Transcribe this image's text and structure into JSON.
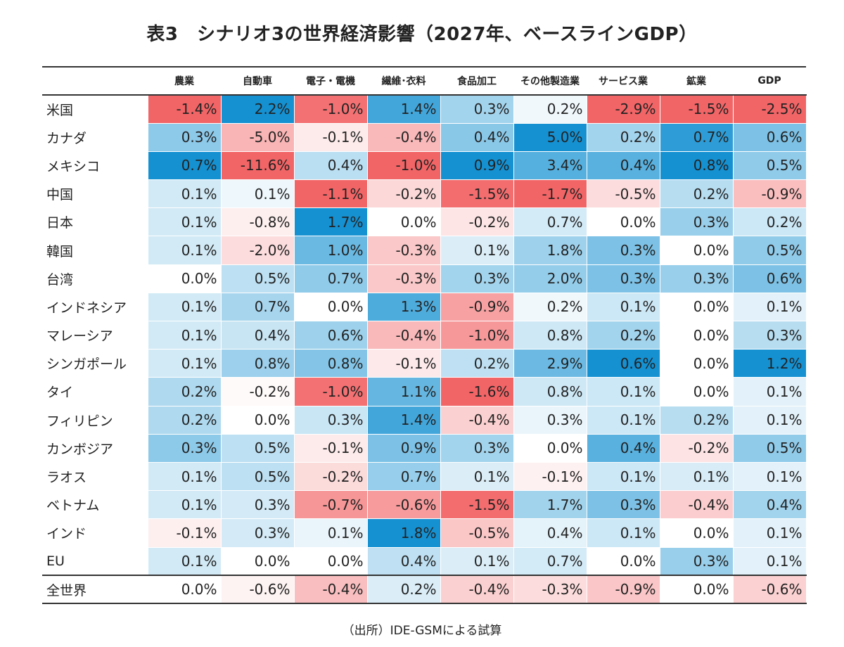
{
  "chart_data": {
    "type": "heatmap",
    "title": "表3　シナリオ3の世界経済影響（2027年、ベースラインGDP）",
    "columns": [
      "農業",
      "自動車",
      "電子・電機",
      "繊維･衣料",
      "食品加工",
      "その他製造業",
      "サービス業",
      "鉱業",
      "GDP"
    ],
    "rows": [
      {
        "label": "米国",
        "values": [
          -1.4,
          2.2,
          -1.0,
          1.4,
          0.3,
          0.2,
          -2.9,
          -1.5,
          -2.5
        ]
      },
      {
        "label": "カナダ",
        "values": [
          0.3,
          -5.0,
          -0.1,
          -0.4,
          0.4,
          5.0,
          0.2,
          0.7,
          0.6
        ]
      },
      {
        "label": "メキシコ",
        "values": [
          0.7,
          -11.6,
          0.4,
          -1.0,
          0.9,
          3.4,
          0.4,
          0.8,
          0.5
        ]
      },
      {
        "label": "中国",
        "values": [
          0.1,
          0.1,
          -1.1,
          -0.2,
          -1.5,
          -1.7,
          -0.5,
          0.2,
          -0.9
        ]
      },
      {
        "label": "日本",
        "values": [
          0.1,
          -0.8,
          1.7,
          0.0,
          -0.2,
          0.7,
          0.0,
          0.3,
          0.2
        ]
      },
      {
        "label": "韓国",
        "values": [
          0.1,
          -2.0,
          1.0,
          -0.3,
          0.1,
          1.8,
          0.3,
          0.0,
          0.5
        ]
      },
      {
        "label": "台湾",
        "values": [
          0.0,
          0.5,
          0.7,
          -0.3,
          0.3,
          2.0,
          0.3,
          0.3,
          0.6
        ]
      },
      {
        "label": "インドネシア",
        "values": [
          0.1,
          0.7,
          0.0,
          1.3,
          -0.9,
          0.2,
          0.1,
          0.0,
          0.1
        ]
      },
      {
        "label": "マレーシア",
        "values": [
          0.1,
          0.4,
          0.6,
          -0.4,
          -1.0,
          0.8,
          0.2,
          0.0,
          0.3
        ]
      },
      {
        "label": "シンガポール",
        "values": [
          0.1,
          0.8,
          0.8,
          -0.1,
          0.2,
          2.9,
          0.6,
          0.0,
          1.2
        ]
      },
      {
        "label": "タイ",
        "values": [
          0.2,
          -0.2,
          -1.0,
          1.1,
          -1.6,
          0.8,
          0.1,
          0.0,
          0.1
        ]
      },
      {
        "label": "フィリピン",
        "values": [
          0.2,
          0.0,
          0.3,
          1.4,
          -0.4,
          0.3,
          0.1,
          0.2,
          0.1
        ]
      },
      {
        "label": "カンボジア",
        "values": [
          0.3,
          0.5,
          -0.1,
          0.9,
          0.3,
          0.0,
          0.4,
          -0.2,
          0.5
        ]
      },
      {
        "label": "ラオス",
        "values": [
          0.1,
          0.5,
          -0.2,
          0.7,
          0.1,
          -0.1,
          0.1,
          0.1,
          0.1
        ]
      },
      {
        "label": "ベトナム",
        "values": [
          0.1,
          0.3,
          -0.7,
          -0.6,
          -1.5,
          1.7,
          0.3,
          -0.4,
          0.4
        ]
      },
      {
        "label": "インド",
        "values": [
          -0.1,
          0.3,
          0.1,
          1.8,
          -0.5,
          0.4,
          0.1,
          0.0,
          0.1
        ]
      },
      {
        "label": "EU",
        "values": [
          0.1,
          0.0,
          0.0,
          0.4,
          0.1,
          0.7,
          0.0,
          0.3,
          0.1
        ]
      }
    ],
    "total_row": {
      "label": "全世界",
      "values": [
        0.0,
        -0.6,
        -0.4,
        0.2,
        -0.4,
        -0.3,
        -0.9,
        0.0,
        -0.6
      ]
    },
    "unit": "%",
    "color_scale": {
      "negative": "#f26567",
      "neutral": "#ffffff",
      "positive": "#1591d2"
    }
  },
  "source": "（出所）IDE-GSMによる試算"
}
